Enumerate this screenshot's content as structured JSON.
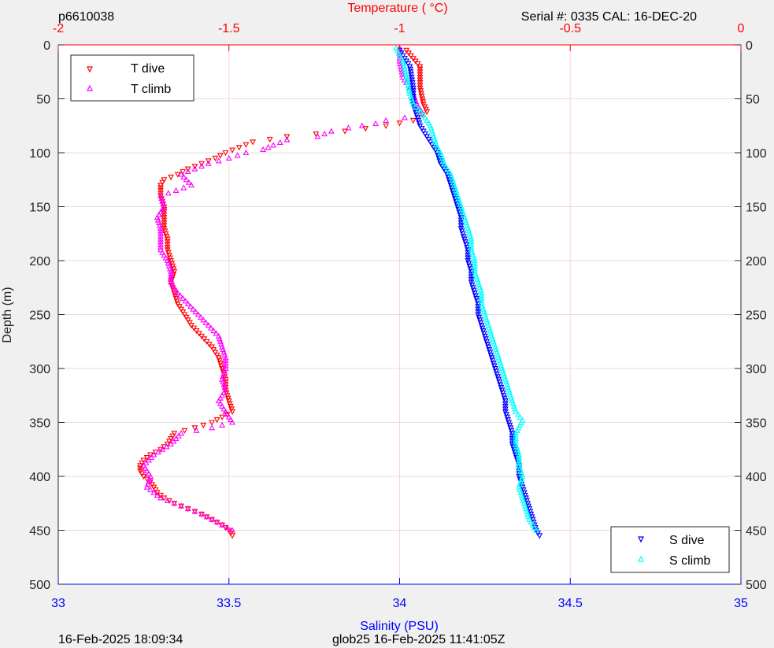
{
  "header": {
    "left": "p6610038",
    "right": "Serial #: 0335  CAL: 16-DEC-20"
  },
  "footer": {
    "left": "16-Feb-2025 18:09:34",
    "center": "glob25 16-Feb-2025 11:41:05Z"
  },
  "colors": {
    "t_dive": "#ff0000",
    "t_climb": "#ff00ff",
    "s_dive": "#0000ff",
    "s_climb": "#00ffff",
    "temp_axis": "#ff0000",
    "sal_axis": "#0000ff"
  },
  "chart_data": {
    "type": "scatter",
    "top_axis": {
      "label": "Temperature (    °C)",
      "lim": [
        -2,
        0
      ],
      "ticks": [
        "-2",
        "-1.5",
        "-1",
        "-0.5",
        "0"
      ]
    },
    "bottom_axis": {
      "label": "Salinity (PSU)",
      "lim": [
        33,
        35
      ],
      "ticks": [
        "33",
        "33.5",
        "34",
        "34.5",
        "35"
      ]
    },
    "y_axis": {
      "label": "Depth (m)",
      "lim": [
        0,
        500
      ],
      "reversed": true,
      "ticks": [
        "0",
        "50",
        "100",
        "150",
        "200",
        "250",
        "300",
        "350",
        "400",
        "450",
        "500"
      ]
    },
    "grid": true,
    "legends": [
      {
        "placement": "top-left",
        "entries": [
          "T dive",
          "T climb"
        ]
      },
      {
        "placement": "bottom-right",
        "entries": [
          "S dive",
          "S climb"
        ]
      }
    ],
    "series": [
      {
        "name": "T dive",
        "axis": "temperature",
        "marker": "triangle-down",
        "depth": [
          5,
          20,
          40,
          55,
          62,
          70,
          75,
          80,
          85,
          90,
          95,
          100,
          105,
          110,
          115,
          120,
          125,
          130,
          140,
          150,
          160,
          170,
          180,
          190,
          200,
          210,
          220,
          230,
          240,
          250,
          260,
          270,
          280,
          290,
          300,
          310,
          320,
          330,
          340,
          345,
          350,
          355,
          360,
          365,
          370,
          375,
          380,
          385,
          390,
          395,
          400,
          405,
          410,
          415,
          420,
          425,
          430,
          435,
          440,
          445,
          450,
          455
        ],
        "values": [
          -0.98,
          -0.94,
          -0.94,
          -0.93,
          -0.92,
          -0.96,
          -1.04,
          -1.16,
          -1.33,
          -1.43,
          -1.47,
          -1.51,
          -1.54,
          -1.58,
          -1.62,
          -1.65,
          -1.69,
          -1.7,
          -1.7,
          -1.69,
          -1.69,
          -1.69,
          -1.68,
          -1.68,
          -1.67,
          -1.66,
          -1.67,
          -1.66,
          -1.65,
          -1.63,
          -1.61,
          -1.58,
          -1.55,
          -1.53,
          -1.52,
          -1.51,
          -1.51,
          -1.5,
          -1.49,
          -1.52,
          -1.55,
          -1.6,
          -1.66,
          -1.67,
          -1.68,
          -1.7,
          -1.73,
          -1.75,
          -1.76,
          -1.76,
          -1.75,
          -1.73,
          -1.72,
          -1.71,
          -1.69,
          -1.66,
          -1.62,
          -1.58,
          -1.55,
          -1.52,
          -1.5,
          -1.49
        ]
      },
      {
        "name": "T climb",
        "axis": "temperature",
        "marker": "triangle-up",
        "depth": [
          3,
          15,
          30,
          45,
          55,
          65,
          70,
          73,
          77,
          80,
          85,
          88,
          93,
          97,
          100,
          105,
          110,
          120,
          130,
          140,
          150,
          160,
          170,
          180,
          190,
          200,
          210,
          220,
          230,
          240,
          250,
          260,
          270,
          280,
          290,
          300,
          310,
          320,
          330,
          340,
          350,
          355,
          360,
          370,
          380,
          390,
          400,
          410,
          420,
          425,
          430,
          435,
          440,
          445,
          450
        ],
        "values": [
          -1.0,
          -1.0,
          -0.99,
          -0.96,
          -0.95,
          -0.93,
          -1.04,
          -1.07,
          -1.15,
          -1.2,
          -1.24,
          -1.33,
          -1.37,
          -1.4,
          -1.45,
          -1.5,
          -1.56,
          -1.64,
          -1.61,
          -1.7,
          -1.69,
          -1.71,
          -1.7,
          -1.7,
          -1.7,
          -1.68,
          -1.67,
          -1.67,
          -1.65,
          -1.62,
          -1.59,
          -1.56,
          -1.53,
          -1.52,
          -1.51,
          -1.51,
          -1.52,
          -1.51,
          -1.53,
          -1.51,
          -1.49,
          -1.55,
          -1.64,
          -1.67,
          -1.72,
          -1.75,
          -1.73,
          -1.74,
          -1.7,
          -1.66,
          -1.62,
          -1.58,
          -1.55,
          -1.52,
          -1.49
        ]
      },
      {
        "name": "S dive",
        "axis": "salinity",
        "marker": "triangle-down",
        "depth": [
          5,
          20,
          40,
          55,
          65,
          75,
          85,
          95,
          100,
          110,
          120,
          130,
          140,
          150,
          160,
          170,
          180,
          190,
          200,
          210,
          220,
          230,
          240,
          250,
          260,
          270,
          280,
          290,
          300,
          310,
          320,
          330,
          340,
          350,
          360,
          370,
          380,
          390,
          400,
          410,
          420,
          430,
          440,
          450,
          455
        ],
        "values": [
          34.0,
          34.03,
          34.04,
          34.04,
          34.05,
          34.06,
          34.08,
          34.1,
          34.11,
          34.12,
          34.14,
          34.15,
          34.16,
          34.17,
          34.18,
          34.18,
          34.19,
          34.2,
          34.2,
          34.21,
          34.21,
          34.22,
          34.23,
          34.23,
          34.24,
          34.25,
          34.26,
          34.27,
          34.28,
          34.29,
          34.3,
          34.31,
          34.31,
          34.32,
          34.33,
          34.33,
          34.34,
          34.35,
          34.35,
          34.36,
          34.37,
          34.38,
          34.39,
          34.4,
          34.41
        ]
      },
      {
        "name": "S climb",
        "axis": "salinity",
        "marker": "triangle-up",
        "depth": [
          3,
          15,
          30,
          45,
          55,
          65,
          75,
          85,
          95,
          100,
          110,
          120,
          130,
          140,
          150,
          160,
          170,
          180,
          190,
          200,
          210,
          220,
          230,
          240,
          250,
          260,
          270,
          280,
          290,
          300,
          310,
          320,
          330,
          340,
          348,
          360,
          370,
          380,
          390,
          400,
          410,
          420,
          430,
          440,
          450
        ],
        "values": [
          33.99,
          34.01,
          34.02,
          34.03,
          34.04,
          34.07,
          34.09,
          34.1,
          34.11,
          34.12,
          34.13,
          34.15,
          34.16,
          34.17,
          34.18,
          34.19,
          34.2,
          34.21,
          34.21,
          34.22,
          34.22,
          34.23,
          34.24,
          34.24,
          34.25,
          34.26,
          34.27,
          34.28,
          34.29,
          34.3,
          34.31,
          34.32,
          34.33,
          34.34,
          34.36,
          34.34,
          34.34,
          34.35,
          34.35,
          34.36,
          34.35,
          34.36,
          34.37,
          34.38,
          34.4
        ]
      }
    ]
  }
}
